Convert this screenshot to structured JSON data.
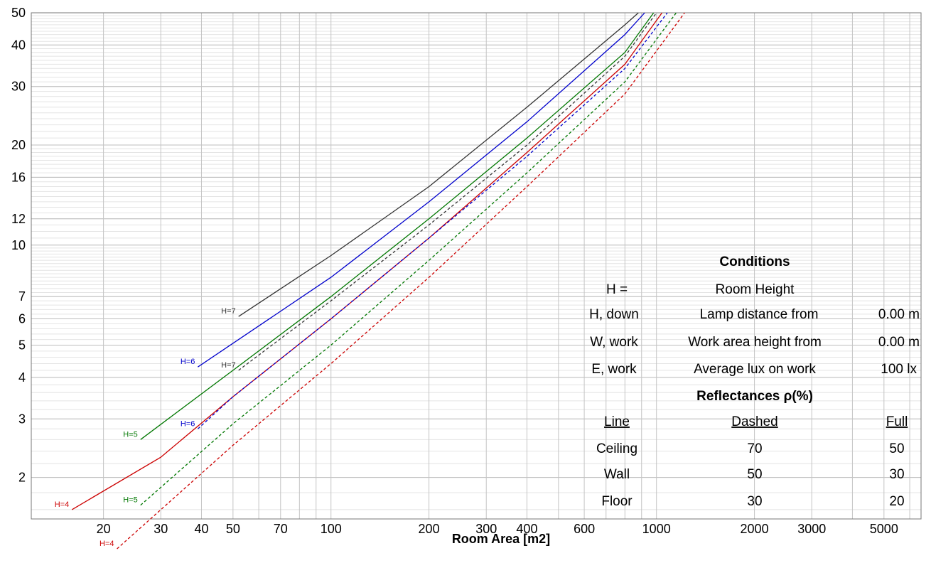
{
  "chart_data": {
    "type": "line",
    "xlabel": "Room Area [m2]",
    "ylabel": "",
    "x_scale": "log",
    "y_scale": "log",
    "xlim": [
      12,
      6500
    ],
    "ylim": [
      1.5,
      50
    ],
    "x_ticks": [
      20,
      30,
      40,
      50,
      70,
      100,
      200,
      300,
      400,
      600,
      1000,
      2000,
      3000,
      5000
    ],
    "x_tick_labels": [
      "20",
      "30",
      "40",
      "50",
      "70",
      "100",
      "200",
      "300",
      "400",
      "600",
      "1000",
      "2000",
      "3000",
      "5000"
    ],
    "y_ticks": [
      2,
      3,
      4,
      5,
      6,
      7,
      10,
      12,
      16,
      20,
      30,
      40,
      50
    ],
    "y_tick_labels": [
      "2",
      "3",
      "4",
      "5",
      "6",
      "7",
      "10",
      "12",
      "16",
      "20",
      "30",
      "40",
      "50"
    ],
    "grid": true,
    "series": [
      {
        "name": "H=7",
        "style": "full",
        "color": "#333333",
        "points": [
          [
            52,
            6.1
          ],
          [
            100,
            9.3
          ],
          [
            200,
            15.0
          ],
          [
            400,
            26.0
          ],
          [
            800,
            46.0
          ],
          [
            880,
            50.0
          ]
        ]
      },
      {
        "name": "H=6",
        "style": "full",
        "color": "#0000cc",
        "points": [
          [
            39,
            4.3
          ],
          [
            100,
            8.0
          ],
          [
            200,
            13.5
          ],
          [
            400,
            23.5
          ],
          [
            800,
            43.0
          ],
          [
            920,
            50.0
          ]
        ]
      },
      {
        "name": "H=5",
        "style": "full",
        "color": "#007700",
        "points": [
          [
            26,
            2.6
          ],
          [
            50,
            4.2
          ],
          [
            100,
            7.0
          ],
          [
            200,
            12.0
          ],
          [
            400,
            21.0
          ],
          [
            800,
            38.0
          ],
          [
            980,
            50.0
          ]
        ]
      },
      {
        "name": "H=4",
        "style": "full",
        "color": "#cc0000",
        "points": [
          [
            16,
            1.6
          ],
          [
            30,
            2.3
          ],
          [
            50,
            3.5
          ],
          [
            100,
            6.0
          ],
          [
            200,
            10.5
          ],
          [
            400,
            19.0
          ],
          [
            800,
            35.0
          ],
          [
            1040,
            50.0
          ]
        ]
      },
      {
        "name": "H=7",
        "style": "dashed",
        "color": "#333333",
        "points": [
          [
            52,
            4.2
          ],
          [
            100,
            6.8
          ],
          [
            200,
            11.5
          ],
          [
            400,
            20.0
          ],
          [
            800,
            37.0
          ],
          [
            1000,
            50.0
          ]
        ]
      },
      {
        "name": "H=6",
        "style": "dashed",
        "color": "#0000cc",
        "points": [
          [
            39,
            2.8
          ],
          [
            50,
            3.5
          ],
          [
            100,
            6.0
          ],
          [
            200,
            10.5
          ],
          [
            400,
            18.5
          ],
          [
            800,
            34.0
          ],
          [
            1080,
            50.0
          ]
        ]
      },
      {
        "name": "H=5",
        "style": "dashed",
        "color": "#007700",
        "points": [
          [
            26,
            1.65
          ],
          [
            50,
            2.9
          ],
          [
            100,
            5.0
          ],
          [
            200,
            9.0
          ],
          [
            400,
            16.5
          ],
          [
            800,
            31.0
          ],
          [
            1150,
            50.0
          ]
        ]
      },
      {
        "name": "H=4",
        "style": "dashed",
        "color": "#cc0000",
        "points": [
          [
            22,
            1.22
          ],
          [
            50,
            2.5
          ],
          [
            100,
            4.4
          ],
          [
            200,
            8.0
          ],
          [
            400,
            15.0
          ],
          [
            800,
            28.5
          ],
          [
            1220,
            50.0
          ]
        ]
      }
    ]
  },
  "conditions": {
    "title": "Conditions",
    "rows": [
      {
        "sym": "H =",
        "desc": "Room Height",
        "val": ""
      },
      {
        "sym": "H, down",
        "desc": "Lamp distance from",
        "val": "0.00 m"
      },
      {
        "sym": "W, work",
        "desc": "Work area height from",
        "val": "0.00 m"
      },
      {
        "sym": "E, work",
        "desc": "Average lux on work",
        "val": "100 lx"
      }
    ],
    "reflectances_title": "Reflectances ρ(%)",
    "headers": {
      "line": "Line",
      "dashed": "Dashed",
      "full": "Full"
    },
    "refl_rows": [
      {
        "name": "Ceiling",
        "dashed": "70",
        "full": "50"
      },
      {
        "name": "Wall",
        "dashed": "50",
        "full": "30"
      },
      {
        "name": "Floor",
        "dashed": "30",
        "full": "20"
      }
    ]
  }
}
